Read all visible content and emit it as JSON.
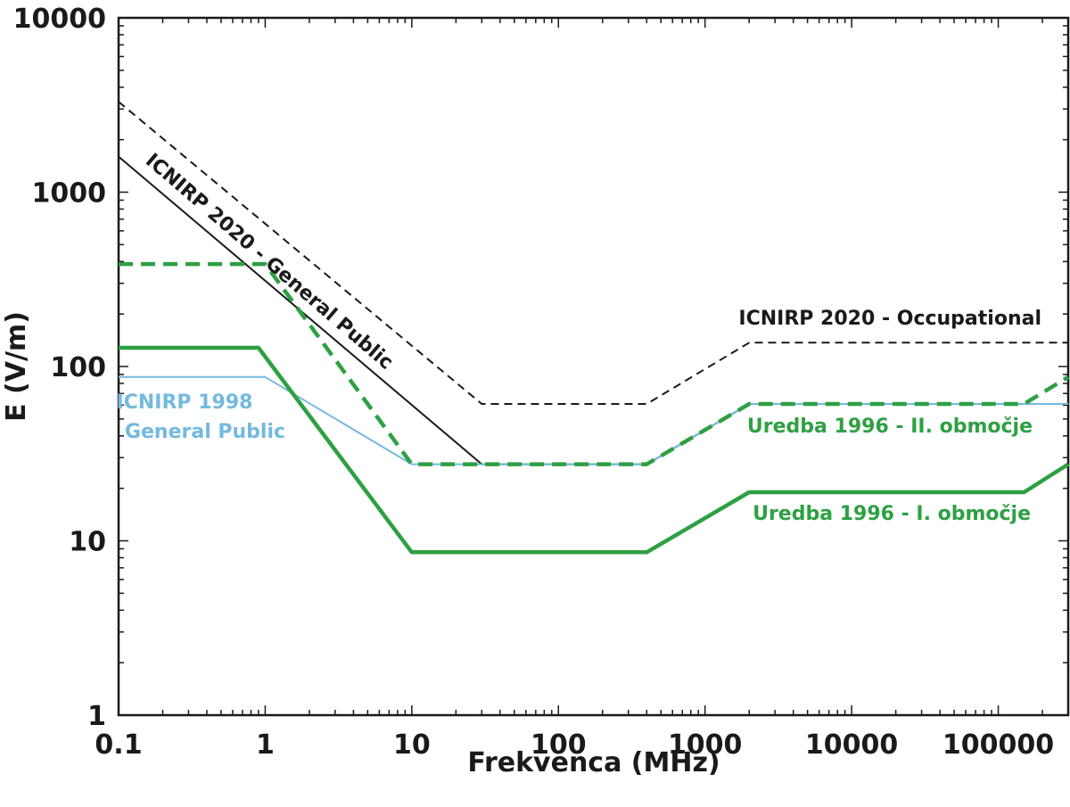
{
  "chart_data": {
    "type": "line",
    "xlabel": "Frekvenca (MHz)",
    "ylabel": "E (V/m)",
    "x_scale": "log",
    "y_scale": "log",
    "xlim": [
      0.1,
      300000
    ],
    "ylim": [
      1,
      10000
    ],
    "grid": false,
    "x_ticks": [
      "0.1",
      "1",
      "10",
      "100",
      "1000",
      "10000",
      "100000"
    ],
    "x_tick_values": [
      0.1,
      1,
      10,
      100,
      1000,
      10000,
      100000
    ],
    "y_ticks": [
      "1",
      "10",
      "100",
      "1000",
      "10000"
    ],
    "y_tick_values": [
      1,
      10,
      100,
      1000,
      10000
    ],
    "series": [
      {
        "name": "ICNIRP 2020 - Occupational",
        "color": "#1a1a1a",
        "style": "dashed",
        "points": [
          [
            0.1,
            3300
          ],
          [
            30,
            61
          ],
          [
            400,
            61
          ],
          [
            2000,
            137
          ],
          [
            300000,
            137
          ]
        ]
      },
      {
        "name": "ICNIRP 2020 - General Public",
        "color": "#1a1a1a",
        "style": "solid",
        "points": [
          [
            0.1,
            1600
          ],
          [
            30,
            27.5
          ],
          [
            400,
            27.5
          ],
          [
            2000,
            61
          ],
          [
            300000,
            61
          ]
        ]
      },
      {
        "name": "ICNIRP 1998 General Public",
        "color": "#74b9df",
        "style": "solid",
        "points": [
          [
            0.1,
            87
          ],
          [
            1,
            87
          ],
          [
            10,
            27.5
          ],
          [
            400,
            27.5
          ],
          [
            2000,
            61
          ],
          [
            300000,
            61
          ]
        ]
      },
      {
        "name": "Uredba 1996 - II. območje",
        "color": "#2ea043",
        "style": "dashed",
        "points": [
          [
            0.1,
            387
          ],
          [
            1,
            387
          ],
          [
            10,
            27.5
          ],
          [
            400,
            27.5
          ],
          [
            2000,
            61
          ],
          [
            150000,
            61
          ],
          [
            300000,
            87
          ]
        ]
      },
      {
        "name": "Uredba 1996 - I. območje",
        "color": "#2ea043",
        "style": "solid",
        "points": [
          [
            0.1,
            128
          ],
          [
            0.9,
            128
          ],
          [
            10,
            8.6
          ],
          [
            400,
            8.6
          ],
          [
            2000,
            19
          ],
          [
            150000,
            19
          ],
          [
            300000,
            27.5
          ]
        ]
      }
    ],
    "annotations": [
      {
        "id": "occ",
        "text": "ICNIRP 2020 - Occupational",
        "color": "#1a1a1a"
      },
      {
        "id": "gp2020",
        "text": "ICNIRP 2020 - General Public",
        "color": "#1a1a1a"
      },
      {
        "id": "icnirp1998_l1",
        "text": "ICNIRP 1998",
        "color": "#74b9df"
      },
      {
        "id": "icnirp1998_l2",
        "text": "General Public",
        "color": "#74b9df"
      },
      {
        "id": "uredba2",
        "text": "Uredba 1996 - II. območje",
        "color": "#2ea043"
      },
      {
        "id": "uredba1",
        "text": "Uredba 1996 - I. območje",
        "color": "#2ea043"
      }
    ]
  }
}
